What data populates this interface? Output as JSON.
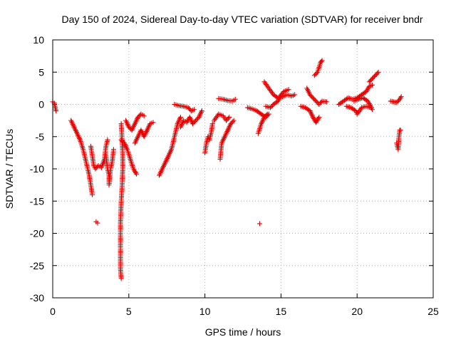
{
  "chart_data": {
    "type": "scatter",
    "title": "Day 150 of 2024, Sidereal Day-to-day VTEC variation (SDTVAR) for receiver bndr",
    "xlabel": "GPS time / hours",
    "ylabel": "SDTVAR / TECUs",
    "xlim": [
      0,
      25
    ],
    "ylim": [
      -30,
      10
    ],
    "xticks": [
      0,
      5,
      10,
      15,
      20,
      25
    ],
    "yticks": [
      -30,
      -25,
      -20,
      -15,
      -10,
      -5,
      0,
      5,
      10
    ],
    "grid": true,
    "marker": "plus",
    "marker_color": "#e60000",
    "series": [
      {
        "name": "seg1",
        "points": [
          [
            0.0,
            0.4
          ],
          [
            0.1,
            0.2
          ],
          [
            0.15,
            -0.3
          ],
          [
            0.2,
            -0.8
          ],
          [
            0.22,
            -1.0
          ]
        ]
      },
      {
        "name": "seg2",
        "points": [
          [
            1.2,
            -2.5
          ],
          [
            1.4,
            -3.5
          ],
          [
            1.6,
            -4.5
          ],
          [
            1.8,
            -5.5
          ],
          [
            2.0,
            -7
          ],
          [
            2.2,
            -9
          ],
          [
            2.4,
            -11
          ],
          [
            2.5,
            -12.5
          ],
          [
            2.6,
            -14
          ]
        ]
      },
      {
        "name": "seg3",
        "points": [
          [
            2.5,
            -6.5
          ],
          [
            2.6,
            -8
          ],
          [
            2.7,
            -9.5
          ],
          [
            2.8,
            -10
          ],
          [
            3.0,
            -9.5
          ],
          [
            3.2,
            -9.8
          ],
          [
            3.4,
            -8.5
          ],
          [
            3.5,
            -6.5
          ],
          [
            3.6,
            -5.5
          ]
        ]
      },
      {
        "name": "seg4",
        "points": [
          [
            3.5,
            -8
          ],
          [
            3.6,
            -10
          ],
          [
            3.7,
            -11
          ],
          [
            3.7,
            -12.5
          ],
          [
            3.8,
            -10
          ],
          [
            3.9,
            -9
          ],
          [
            4.0,
            -7
          ]
        ]
      },
      {
        "name": "seg5",
        "points": [
          [
            2.85,
            -18.2
          ],
          [
            2.95,
            -18.4
          ]
        ]
      },
      {
        "name": "seg6",
        "points": [
          [
            4.5,
            -3
          ],
          [
            4.55,
            -5
          ],
          [
            4.6,
            -8
          ],
          [
            4.6,
            -10
          ],
          [
            4.55,
            -13
          ],
          [
            4.5,
            -15
          ],
          [
            4.45,
            -18.5
          ],
          [
            4.45,
            -20
          ],
          [
            4.45,
            -22
          ],
          [
            4.45,
            -24
          ],
          [
            4.45,
            -25.5
          ],
          [
            4.5,
            -27
          ]
        ]
      },
      {
        "name": "seg7",
        "points": [
          [
            4.5,
            -5.5
          ],
          [
            4.7,
            -6
          ],
          [
            4.9,
            -7
          ],
          [
            5.1,
            -8.5
          ],
          [
            5.3,
            -10
          ],
          [
            5.5,
            -10.8
          ]
        ]
      },
      {
        "name": "seg8",
        "points": [
          [
            4.8,
            -2.5
          ],
          [
            5.0,
            -3.5
          ],
          [
            5.2,
            -4
          ],
          [
            5.4,
            -3
          ],
          [
            5.6,
            -2
          ],
          [
            5.8,
            -1.5
          ],
          [
            6.0,
            -1.8
          ]
        ]
      },
      {
        "name": "seg9",
        "points": [
          [
            5.4,
            -6
          ],
          [
            5.6,
            -5
          ],
          [
            5.8,
            -4
          ],
          [
            6.0,
            -5
          ],
          [
            6.2,
            -4
          ],
          [
            6.4,
            -3
          ],
          [
            6.6,
            -2.8
          ]
        ]
      },
      {
        "name": "seg10",
        "points": [
          [
            7.0,
            -11
          ],
          [
            7.2,
            -10
          ],
          [
            7.4,
            -9
          ],
          [
            7.6,
            -8
          ],
          [
            7.8,
            -7
          ],
          [
            8.0,
            -5
          ],
          [
            8.2,
            -3
          ],
          [
            8.4,
            -2
          ]
        ]
      },
      {
        "name": "seg11",
        "points": [
          [
            8.0,
            0
          ],
          [
            8.3,
            -0.2
          ],
          [
            8.6,
            -0.3
          ],
          [
            8.9,
            -0.5
          ],
          [
            9.1,
            -1
          ],
          [
            9.3,
            -0.8
          ]
        ]
      },
      {
        "name": "seg12",
        "points": [
          [
            8.4,
            -3.5
          ],
          [
            8.6,
            -2.5
          ],
          [
            8.8,
            -2.8
          ],
          [
            9.0,
            -2
          ],
          [
            9.2,
            -3
          ],
          [
            9.4,
            -2.5
          ],
          [
            9.6,
            -2
          ],
          [
            9.8,
            -1
          ]
        ]
      },
      {
        "name": "seg13",
        "points": [
          [
            10.0,
            -7.5
          ],
          [
            10.1,
            -6
          ],
          [
            10.2,
            -5
          ],
          [
            10.3,
            -5.5
          ],
          [
            10.4,
            -4.5
          ],
          [
            10.5,
            -3
          ]
        ]
      },
      {
        "name": "seg14",
        "points": [
          [
            10.6,
            -2.5
          ],
          [
            10.9,
            -1.5
          ],
          [
            11.2,
            -1.8
          ],
          [
            11.4,
            -2.5
          ],
          [
            11.6,
            -2
          ]
        ]
      },
      {
        "name": "seg15",
        "points": [
          [
            10.9,
            0.9
          ],
          [
            11.2,
            0.8
          ],
          [
            11.5,
            0.6
          ],
          [
            11.8,
            0.5
          ],
          [
            12.0,
            0.8
          ]
        ]
      },
      {
        "name": "seg16",
        "points": [
          [
            11.0,
            -8.5
          ],
          [
            11.1,
            -6
          ],
          [
            11.3,
            -5
          ],
          [
            11.5,
            -4
          ],
          [
            11.7,
            -3
          ],
          [
            11.9,
            -2.5
          ]
        ]
      },
      {
        "name": "seg17",
        "points": [
          [
            12.8,
            -0.5
          ],
          [
            13.1,
            -0.7
          ],
          [
            13.4,
            -1
          ],
          [
            13.7,
            -1.5
          ],
          [
            14.0,
            -2
          ],
          [
            14.2,
            -1.5
          ]
        ]
      },
      {
        "name": "seg18",
        "points": [
          [
            13.5,
            -4.5
          ],
          [
            13.7,
            -3
          ],
          [
            13.9,
            -2
          ],
          [
            14.1,
            -1.5
          ]
        ]
      },
      {
        "name": "seg19",
        "points": [
          [
            13.9,
            3.5
          ],
          [
            14.2,
            2.5
          ],
          [
            14.5,
            1.5
          ],
          [
            14.8,
            1
          ],
          [
            15.1,
            1.2
          ],
          [
            15.4,
            1.5
          ],
          [
            15.7,
            1.3
          ],
          [
            15.9,
            1.5
          ]
        ]
      },
      {
        "name": "seg20",
        "points": [
          [
            14.0,
            -0.3
          ],
          [
            14.3,
            -0.5
          ],
          [
            14.5,
            0
          ],
          [
            14.8,
            0.5
          ],
          [
            15.0,
            1.5
          ],
          [
            15.2,
            2
          ],
          [
            15.5,
            2.3
          ]
        ]
      },
      {
        "name": "seg21",
        "points": [
          [
            13.6,
            -18.5
          ]
        ]
      },
      {
        "name": "seg22",
        "points": [
          [
            16.3,
            -0.3
          ],
          [
            16.6,
            -0.5
          ],
          [
            16.9,
            -1
          ],
          [
            17.1,
            -2
          ],
          [
            17.3,
            -2.8
          ],
          [
            17.5,
            -2
          ]
        ]
      },
      {
        "name": "seg23",
        "points": [
          [
            16.7,
            2.5
          ],
          [
            16.9,
            1.5
          ],
          [
            17.1,
            1
          ],
          [
            17.3,
            0.5
          ],
          [
            17.5,
            0
          ],
          [
            17.7,
            0.5
          ],
          [
            18.0,
            0.4
          ]
        ]
      },
      {
        "name": "seg24",
        "points": [
          [
            17.2,
            4.5
          ],
          [
            17.4,
            5
          ],
          [
            17.6,
            6.5
          ],
          [
            17.7,
            6.8
          ]
        ]
      },
      {
        "name": "seg25",
        "points": [
          [
            18.8,
            0
          ],
          [
            19.1,
            0.5
          ],
          [
            19.4,
            1
          ],
          [
            19.7,
            0.8
          ],
          [
            20.0,
            1
          ],
          [
            20.3,
            1.5
          ],
          [
            20.6,
            2
          ],
          [
            20.8,
            2.8
          ],
          [
            21.0,
            3
          ]
        ]
      },
      {
        "name": "seg26",
        "points": [
          [
            19.3,
            -0.3
          ],
          [
            19.6,
            -0.5
          ],
          [
            19.9,
            -1
          ],
          [
            20.0,
            -1.5
          ],
          [
            20.3,
            -0.5
          ],
          [
            20.6,
            -0.3
          ],
          [
            20.9,
            -0.5
          ]
        ]
      },
      {
        "name": "seg27",
        "points": [
          [
            19.8,
            0.5
          ],
          [
            20.1,
            0.8
          ],
          [
            20.4,
            1
          ],
          [
            20.7,
            0.5
          ],
          [
            20.9,
            -0.3
          ],
          [
            21.0,
            -0.8
          ]
        ]
      },
      {
        "name": "seg28",
        "points": [
          [
            20.8,
            3.5
          ],
          [
            21.0,
            4
          ],
          [
            21.2,
            4.5
          ],
          [
            21.4,
            5
          ]
        ]
      },
      {
        "name": "seg29",
        "points": [
          [
            22.2,
            0.5
          ],
          [
            22.4,
            0.4
          ],
          [
            22.6,
            0.3
          ],
          [
            22.8,
            0.8
          ],
          [
            22.9,
            1.2
          ]
        ]
      },
      {
        "name": "seg30",
        "points": [
          [
            22.6,
            -6
          ],
          [
            22.7,
            -7
          ],
          [
            22.75,
            -5
          ],
          [
            22.8,
            -4
          ],
          [
            22.85,
            -4
          ]
        ]
      }
    ]
  }
}
